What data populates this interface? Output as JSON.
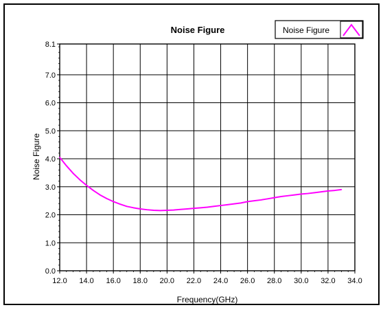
{
  "chart_data": {
    "type": "line",
    "title": "Noise Figure",
    "xlabel": "Frequency(GHz)",
    "ylabel": "Noise Figure",
    "xlim": [
      12.0,
      34.0
    ],
    "ylim": [
      0.0,
      8.1
    ],
    "x_ticks": [
      "12.0",
      "14.0",
      "16.0",
      "18.0",
      "20.0",
      "22.0",
      "24.0",
      "26.0",
      "28.0",
      "30.0",
      "32.0",
      "34.0"
    ],
    "y_ticks": [
      "0.0",
      "1.0",
      "2.0",
      "3.0",
      "4.0",
      "5.0",
      "6.0",
      "7.0",
      "8.1"
    ],
    "grid": true,
    "legend_position": "top-right",
    "series": [
      {
        "name": "Noise Figure",
        "color": "#ff00ff",
        "x": [
          12.0,
          12.5,
          13.0,
          13.5,
          14.0,
          14.5,
          15.0,
          15.5,
          16.0,
          16.5,
          17.0,
          17.5,
          18.0,
          18.5,
          19.0,
          19.5,
          20.0,
          20.5,
          21.0,
          21.5,
          22.0,
          22.5,
          23.0,
          23.5,
          24.0,
          24.5,
          25.0,
          25.5,
          26.0,
          26.5,
          27.0,
          27.5,
          28.0,
          28.5,
          29.0,
          29.5,
          30.0,
          30.5,
          31.0,
          31.5,
          32.0,
          32.5,
          33.0
        ],
        "y": [
          4.05,
          3.75,
          3.48,
          3.25,
          3.05,
          2.87,
          2.71,
          2.58,
          2.47,
          2.38,
          2.3,
          2.25,
          2.21,
          2.18,
          2.16,
          2.15,
          2.16,
          2.17,
          2.19,
          2.21,
          2.23,
          2.25,
          2.27,
          2.3,
          2.33,
          2.36,
          2.39,
          2.42,
          2.47,
          2.5,
          2.53,
          2.57,
          2.61,
          2.65,
          2.68,
          2.71,
          2.74,
          2.76,
          2.79,
          2.82,
          2.85,
          2.87,
          2.9
        ]
      }
    ]
  }
}
